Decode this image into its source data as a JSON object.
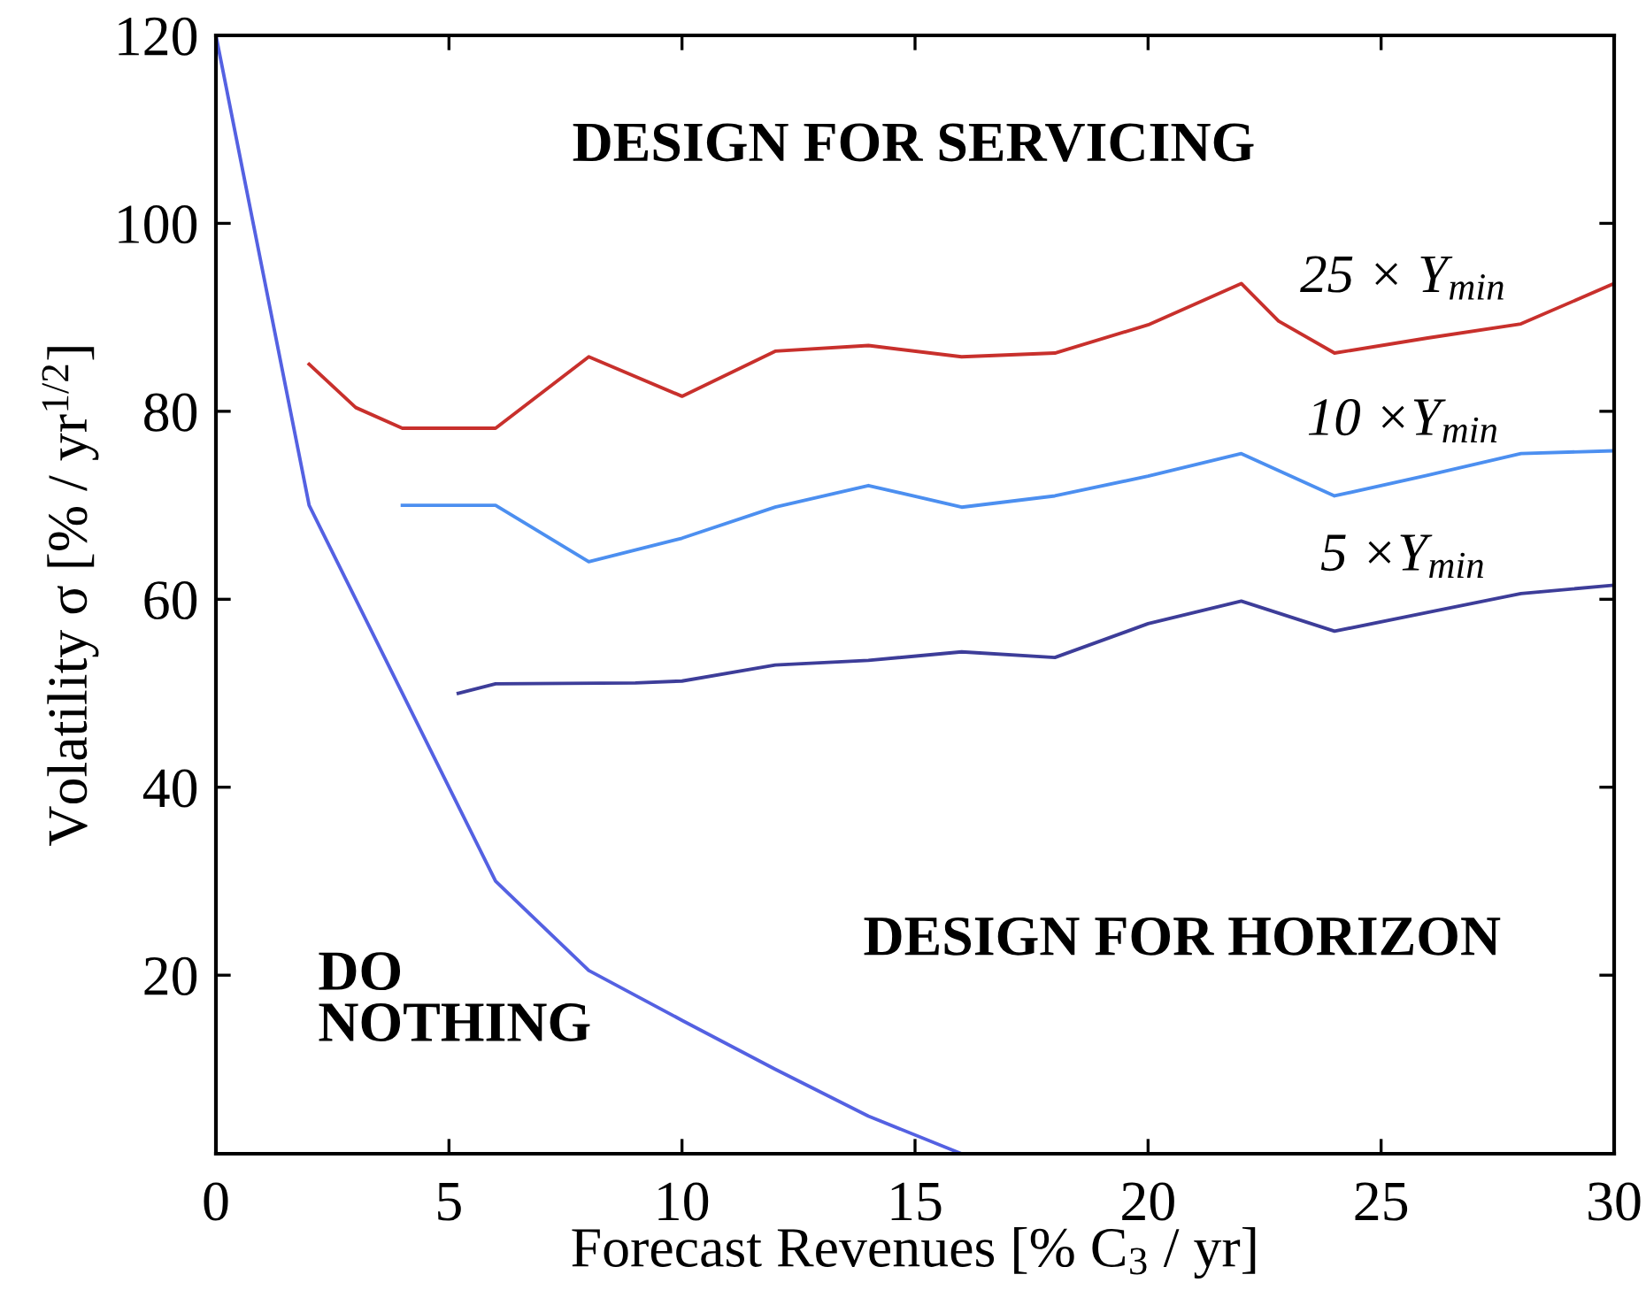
{
  "chart_data": {
    "type": "line",
    "xlabel": "Forecast Revenues [% C$_{3}$ / yr]",
    "ylabel": "Volatility σ [% / yr$^{1/2}$]",
    "xlim": [
      0,
      30
    ],
    "ylim": [
      1,
      120
    ],
    "xticks": [
      0,
      5,
      10,
      15,
      20,
      25,
      30
    ],
    "yticks": [
      20,
      40,
      60,
      80,
      100,
      120
    ],
    "annotations": [
      "DESIGN FOR SERVICING",
      "DO\nNOTHING",
      "DESIGN FOR HORIZON"
    ],
    "series": [
      {
        "color": "#5461e2",
        "x": [
          0,
          2,
          6,
          8,
          10,
          12,
          14,
          16
        ],
        "values": [
          120,
          70,
          30,
          20.5,
          15.2,
          10,
          5,
          1
        ]
      },
      {
        "name": "25 × Υ$_{min}$",
        "color": "#c8302c",
        "x": [
          2,
          3,
          4,
          6,
          8,
          10,
          12,
          14,
          16,
          18,
          20,
          22,
          22.8,
          24,
          26,
          28,
          30
        ],
        "values": [
          85,
          80.4,
          78.2,
          78.2,
          85.8,
          81.6,
          86.4,
          87,
          85.8,
          86.2,
          89.2,
          93.6,
          89.6,
          86.2,
          87.8,
          89.3,
          93.6
        ]
      },
      {
        "name": "10 ×Υ$_{min}$",
        "color": "#4c8ff0",
        "x": [
          4,
          6,
          8,
          10,
          12,
          14,
          16,
          18,
          20,
          22,
          24,
          26,
          28,
          30
        ],
        "values": [
          70,
          70,
          64,
          66.5,
          69.8,
          72.1,
          69.8,
          71,
          73.1,
          75.5,
          71,
          73.2,
          75.5,
          75.8
        ]
      },
      {
        "name": "5 ×Υ$_{min}$",
        "color": "#3d3d99",
        "x": [
          5.2,
          6,
          9,
          10,
          12,
          14,
          16,
          18,
          20,
          22,
          24,
          26,
          28,
          30
        ],
        "values": [
          50,
          51,
          51.1,
          51.3,
          53,
          53.5,
          54.4,
          53.8,
          57.4,
          59.8,
          56.6,
          58.6,
          60.6,
          61.5
        ]
      }
    ]
  }
}
